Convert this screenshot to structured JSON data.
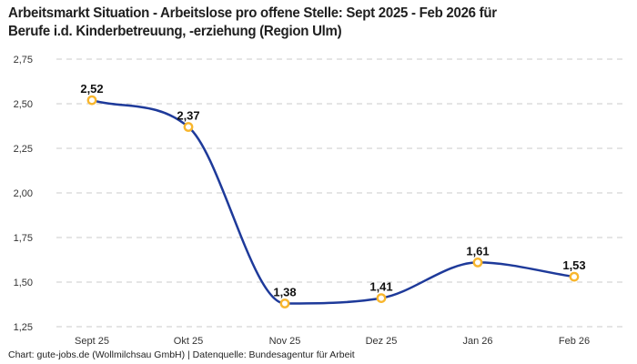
{
  "title": "Arbeitsmarkt Situation - Arbeitslose pro offene Stelle: Sept 2025 - Feb 2026 für Berufe i.d. Kinderbetreuung, -erziehung (Region Ulm)",
  "title_lines": [
    "Arbeitsmarkt Situation - Arbeitslose pro offene Stelle: Sept 2025 - Feb 2026 für",
    "Berufe i.d. Kinderbetreuung, -erziehung (Region Ulm)"
  ],
  "source": "Chart: gute-jobs.de (Wollmilchsau GmbH) | Datenquelle: Bundesagentur für Arbeit",
  "chart_data": {
    "type": "line",
    "title": "Arbeitsmarkt Situation - Arbeitslose pro offene Stelle: Sept 2025 - Feb 2026 für Berufe i.d. Kinderbetreuung, -erziehung (Region Ulm)",
    "categories": [
      "Sept 25",
      "Okt 25",
      "Nov 25",
      "Dez 25",
      "Jan 26",
      "Feb 26"
    ],
    "values": [
      2.52,
      2.37,
      1.38,
      1.41,
      1.61,
      1.53
    ],
    "value_labels": [
      "2,52",
      "2,37",
      "1,38",
      "1,41",
      "1,61",
      "1,53"
    ],
    "xlabel": "",
    "ylabel": "",
    "ylim": [
      1.25,
      2.75
    ],
    "yticks": [
      2.75,
      2.5,
      2.25,
      2.0,
      1.75,
      1.5,
      1.25
    ],
    "ytick_labels": [
      "2,75",
      "2,50",
      "2,25",
      "2,00",
      "1,75",
      "1,50",
      "1,25"
    ],
    "grid": "horizontal-dashed",
    "legend": "none",
    "curve": "monotone"
  },
  "colors": {
    "line": "#1e3a9a",
    "marker_ring": "#f8b62d",
    "marker_fill": "#ffffff",
    "grid": "#cbcbcb",
    "axis_text": "#333333",
    "data_label": "#111111",
    "background": "#ffffff"
  }
}
